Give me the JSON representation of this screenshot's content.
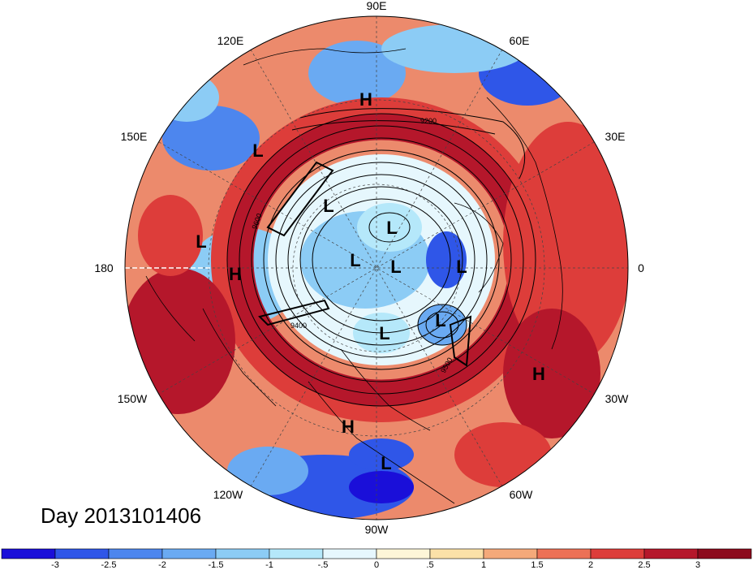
{
  "title": "Day 2013101406",
  "longitude_labels": [
    {
      "text": "90E"
    },
    {
      "text": "60E"
    },
    {
      "text": "30E"
    },
    {
      "text": "0"
    },
    {
      "text": "30W"
    },
    {
      "text": "60W"
    },
    {
      "text": "90W"
    },
    {
      "text": "120W"
    },
    {
      "text": "150W"
    },
    {
      "text": "180"
    },
    {
      "text": "150E"
    },
    {
      "text": "120E"
    }
  ],
  "pressure_systems": [
    {
      "type": "H"
    },
    {
      "type": "L"
    },
    {
      "type": "L"
    },
    {
      "type": "H"
    },
    {
      "type": "L"
    },
    {
      "type": "L"
    },
    {
      "type": "L"
    },
    {
      "type": "L"
    },
    {
      "type": "L"
    },
    {
      "type": "L"
    },
    {
      "type": "L"
    },
    {
      "type": "H"
    },
    {
      "type": "H"
    },
    {
      "type": "L"
    }
  ],
  "contour_labels": [
    "9200",
    "9600",
    "9400",
    "9500"
  ],
  "colorbar": {
    "ticks": [
      "-3",
      "-2.5",
      "-2",
      "-1.5",
      "-1",
      "-.5",
      "0",
      ".5",
      "1",
      "1.5",
      "2",
      "2.5",
      "3"
    ],
    "colors": [
      "#1a0fd9",
      "#2f56e8",
      "#4d86ee",
      "#6aaaf2",
      "#8cccf5",
      "#b5e8fa",
      "#e6f7fd",
      "#fdf6d8",
      "#fbe1a8",
      "#f4a97a",
      "#ec7156",
      "#dd3d3a",
      "#b5172b",
      "#8c0a1d"
    ]
  }
}
